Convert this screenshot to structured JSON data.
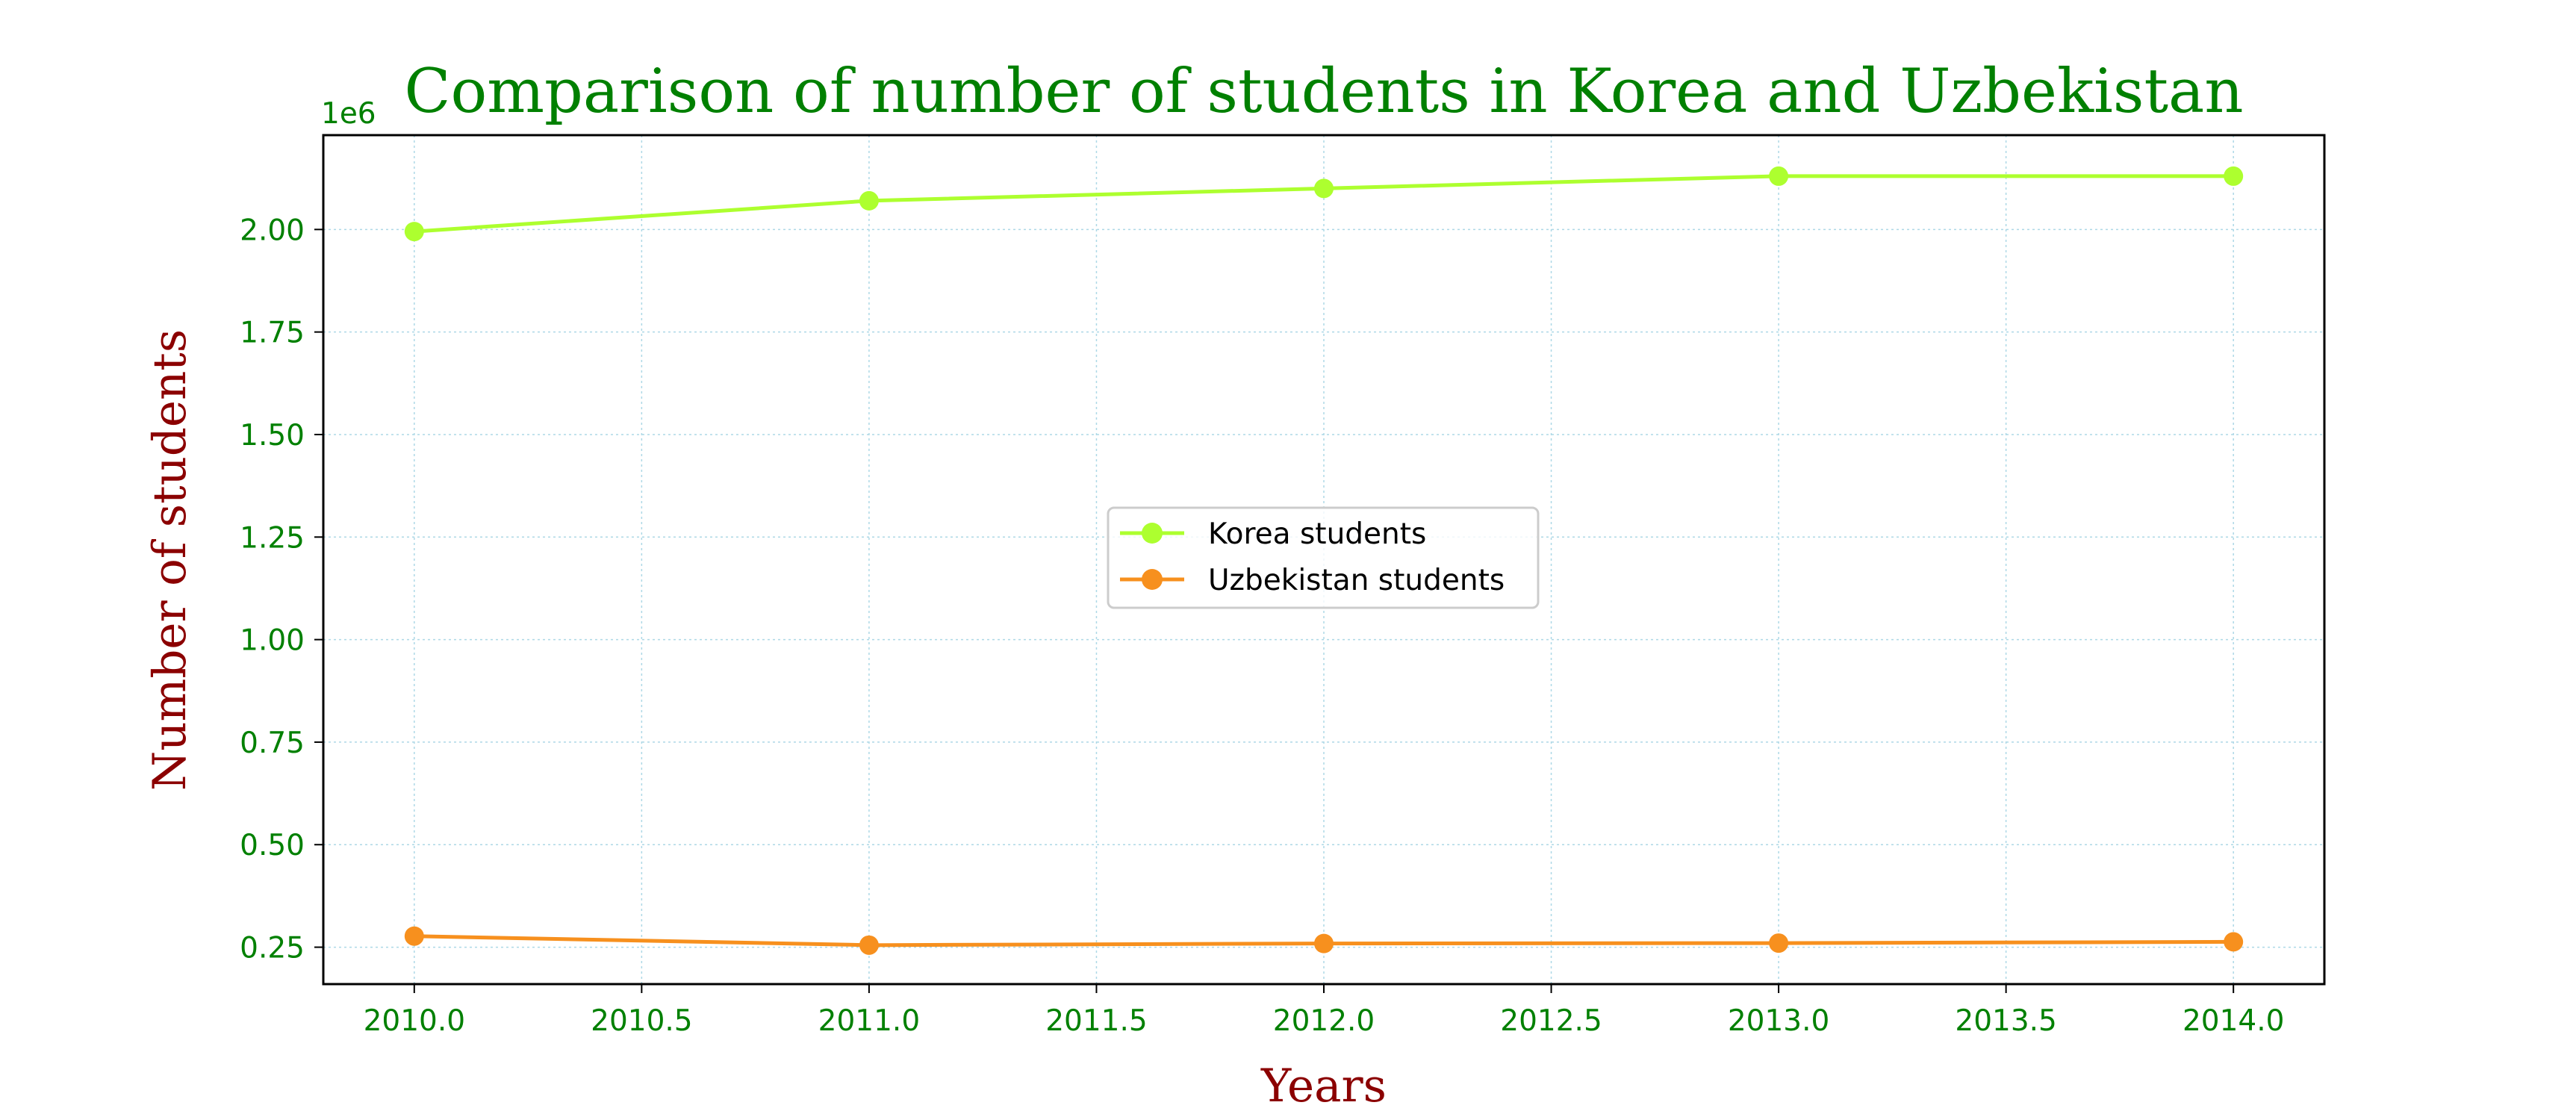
{
  "chart_data": {
    "type": "line",
    "title": "Comparison of number of students in Korea and Uzbekistan",
    "xlabel": "Years",
    "ylabel": "Number of students",
    "y_offset_label": "1e6",
    "x": [
      2010,
      2011,
      2012,
      2013,
      2014
    ],
    "xlim": [
      2009.8,
      2014.2
    ],
    "ylim": [
      0.16,
      2.23
    ],
    "y_scale_factor": 1000000,
    "x_ticks": [
      2010.0,
      2010.5,
      2011.0,
      2011.5,
      2012.0,
      2012.5,
      2013.0,
      2013.5,
      2014.0
    ],
    "x_tick_labels": [
      "2010.0",
      "2010.5",
      "2011.0",
      "2011.5",
      "2012.0",
      "2012.5",
      "2013.0",
      "2013.5",
      "2014.0"
    ],
    "y_ticks": [
      0.25,
      0.5,
      0.75,
      1.0,
      1.25,
      1.5,
      1.75,
      2.0
    ],
    "y_tick_labels": [
      "0.25",
      "0.50",
      "0.75",
      "1.00",
      "1.25",
      "1.50",
      "1.75",
      "2.00"
    ],
    "grid": true,
    "legend_position": "center",
    "series": [
      {
        "name": "Korea students",
        "values": [
          1995000,
          2070000,
          2100000,
          2130000,
          2130000
        ],
        "color": "#adff2f"
      },
      {
        "name": "Uzbekistan students",
        "values": [
          277000,
          255000,
          259000,
          260000,
          263000
        ],
        "color": "#f7901e"
      }
    ],
    "colors": {
      "title": "#008000",
      "axis_label": "#8b0000",
      "tick": "#008000",
      "grid": "#add8e6"
    }
  }
}
